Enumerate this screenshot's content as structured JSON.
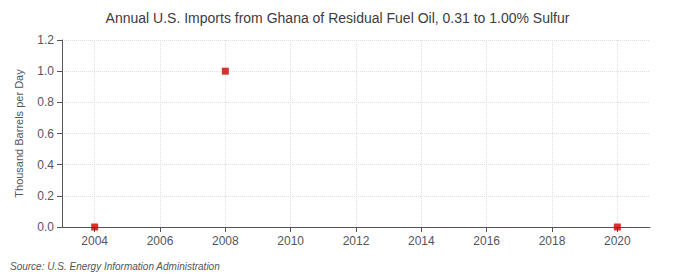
{
  "chart_data": {
    "type": "scatter",
    "title": "Annual U.S. Imports from Ghana of Residual Fuel Oil, 0.31 to 1.00% Sulfur",
    "ylabel": "Thousand Barrels per Day",
    "annotations": [
      "Source: U.S. Energy Information Administration"
    ],
    "x": [
      2004,
      2008,
      2020
    ],
    "values": [
      0.0,
      1.0,
      0.0
    ],
    "color": "#cc0000",
    "marker": "square",
    "xlim": [
      2003.0,
      2021.0
    ],
    "xticks": [
      2004,
      2006,
      2008,
      2010,
      2012,
      2014,
      2016,
      2018,
      2020
    ],
    "ylim": [
      0.0,
      1.2
    ],
    "yticks": [
      {
        "value": 0.0,
        "label": "0.0"
      },
      0.2,
      0.4,
      0.6,
      0.8,
      {
        "value": 1.0,
        "label": "1.0"
      },
      1.2
    ],
    "grid": true
  }
}
